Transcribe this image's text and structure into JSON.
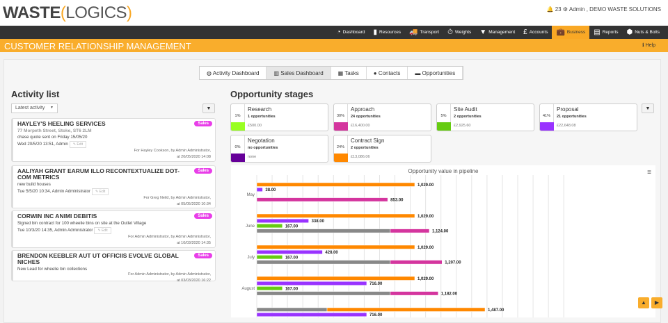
{
  "header": {
    "logo_left": "WASTE",
    "logo_right": "LOGICS",
    "notifications": "23",
    "user": "Admin , DEMO WASTE SOLUTIONS"
  },
  "nav": [
    {
      "label": "Dashboard",
      "icon": "gauge-icon"
    },
    {
      "label": "Resources",
      "icon": "bin-icon"
    },
    {
      "label": "Transport",
      "icon": "truck-icon"
    },
    {
      "label": "Weights",
      "icon": "stopwatch-icon"
    },
    {
      "label": "Management",
      "icon": "tie-icon"
    },
    {
      "label": "Accounts",
      "icon": "pound-icon"
    },
    {
      "label": "Business",
      "icon": "briefcase-icon",
      "active": true
    },
    {
      "label": "Reports",
      "icon": "document-icon"
    },
    {
      "label": "Nuts & Bolts",
      "icon": "nut-icon"
    }
  ],
  "page_title": "CUSTOMER RELATIONSHIP MANAGEMENT",
  "help": "Help",
  "tabs": [
    {
      "label": "Activity Dashboard"
    },
    {
      "label": "Sales Dashboard",
      "active": true
    },
    {
      "label": "Tasks"
    },
    {
      "label": "Contacts"
    },
    {
      "label": "Opportunities"
    }
  ],
  "activity": {
    "title": "Activity list",
    "filter": "Latest activity",
    "edit": "Edit",
    "items": [
      {
        "title": "HAYLEY'S HEELING SERVICES",
        "address": "77 Morpeth Street, Stoke, ST6 2LM",
        "note": "chase quote sent on Friday 15/05/20",
        "when": "Wed 20/5/20 13:51, Admin",
        "meta1": "For Hayley Cookson, by Admin Administrator,",
        "meta2": "at 20/05/2020 14:08",
        "badge": "Sales"
      },
      {
        "title": "AALIYAH GRANT EARUM ILLO RECONTEXTUALIZE DOT-COM METRICS",
        "address": "",
        "note": "new build houses",
        "when": "Tue 5/5/20 10:34, Admin Administrator",
        "meta1": "For Greg Neild, by Admin Administrator,",
        "meta2": "at 05/05/2020 10:34",
        "badge": "Sales"
      },
      {
        "title": "CORWIN INC ANIMI DEBITIS",
        "address": "",
        "note": "Signed bin contract for 100 wheelie bins on site at the Outlet Village",
        "when": "Tue 10/3/20 14:35, Admin Administrator",
        "meta1": "For Admin Administrator, by Admin Administrator,",
        "meta2": "at 10/03/2020 14:35",
        "badge": "Sales"
      },
      {
        "title": "BRENDON KEEBLER AUT UT OFFICIIS EVOLVE GLOBAL NICHES",
        "address": "",
        "note": "New Lead for wheelie bin collections",
        "when": "",
        "meta1": "For Admin Administrator, by Admin Administrator,",
        "meta2": "at 03/03/2020 16:22",
        "badge": "Sales"
      }
    ]
  },
  "stages": {
    "title": "Opportunity stages",
    "items": [
      {
        "name": "Research",
        "pct": "1%",
        "count": "1 opportunities",
        "value": "£500.00",
        "color": "#99ff22"
      },
      {
        "name": "Approach",
        "pct": "30%",
        "count": "24 opportunities",
        "value": "£16,400.00",
        "color": "#d4359e"
      },
      {
        "name": "Site Audit",
        "pct": "5%",
        "count": "2 opportunities",
        "value": "£2,925.60",
        "color": "#66cc11"
      },
      {
        "name": "Proposal",
        "pct": "41%",
        "count": "21 opportunities",
        "value": "£22,648.08",
        "color": "#9933ff"
      },
      {
        "name": "Negotation",
        "pct": "0%",
        "count": "no opportunities",
        "value": "none",
        "color": "#660099"
      },
      {
        "name": "Contract Sign",
        "pct": "24%",
        "count": "2 opportunities",
        "value": "£13,086.06",
        "color": "#ff8800"
      }
    ]
  },
  "chart_data": {
    "type": "bar",
    "orientation": "horizontal",
    "stacked": true,
    "title": "Opportunity value in pipeline",
    "xlim": [
      0,
      2000
    ],
    "grid": true,
    "categories": [
      "May",
      "June",
      "July",
      "August",
      ""
    ],
    "groups": [
      [
        [
          {
            "v": 1029,
            "c": "#ff8800"
          }
        ],
        [
          {
            "v": 38,
            "c": "#9933ff"
          }
        ],
        [],
        [
          {
            "v": 853,
            "c": "#d4359e"
          }
        ]
      ],
      [
        [
          {
            "v": 1029,
            "c": "#ff8800"
          }
        ],
        [
          {
            "v": 338,
            "c": "#9933ff"
          }
        ],
        [
          {
            "v": 167,
            "c": "#66cc11"
          }
        ],
        [
          {
            "v": 870,
            "c": "#888888"
          },
          {
            "v": 254,
            "c": "#d4359e"
          }
        ]
      ],
      [
        [
          {
            "v": 1029,
            "c": "#ff8800"
          }
        ],
        [
          {
            "v": 428,
            "c": "#9933ff"
          }
        ],
        [
          {
            "v": 167,
            "c": "#66cc11"
          }
        ],
        [
          {
            "v": 870,
            "c": "#888888"
          },
          {
            "v": 337,
            "c": "#d4359e"
          }
        ]
      ],
      [
        [
          {
            "v": 1029,
            "c": "#ff8800"
          }
        ],
        [
          {
            "v": 716,
            "c": "#9933ff"
          }
        ],
        [
          {
            "v": 167,
            "c": "#66cc11"
          }
        ],
        [
          {
            "v": 870,
            "c": "#888888"
          },
          {
            "v": 312,
            "c": "#d4359e"
          }
        ]
      ],
      [
        [
          {
            "v": 458,
            "c": "#888888"
          },
          {
            "v": 1029,
            "c": "#ff8800"
          }
        ],
        [
          {
            "v": 716,
            "c": "#9933ff"
          }
        ]
      ]
    ],
    "labels": [
      [
        "1,029.00",
        "38.00",
        "",
        "853.00"
      ],
      [
        "1,029.00",
        "338.00",
        "167.00",
        "1,124.00"
      ],
      [
        "1,029.00",
        "428.00",
        "167.00",
        "1,207.00"
      ],
      [
        "1,029.00",
        "716.00",
        "167.00",
        "1,182.00"
      ],
      [
        "1,487.00",
        "716.00"
      ]
    ]
  }
}
